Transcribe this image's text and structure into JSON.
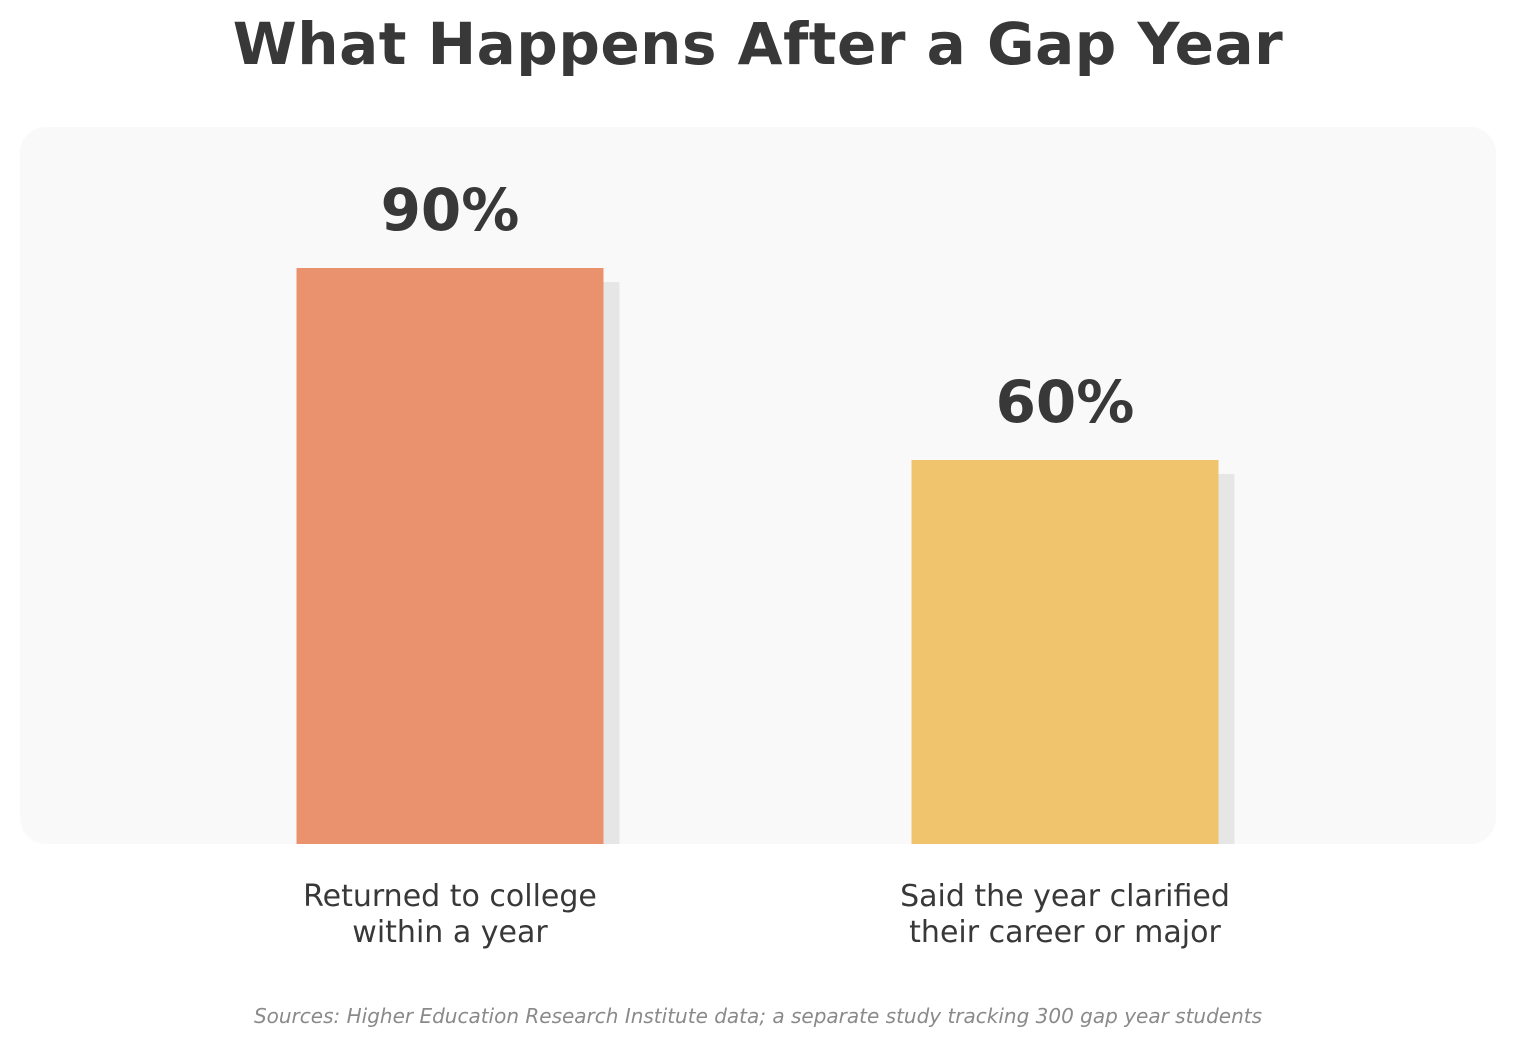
{
  "chart_data": {
    "type": "bar",
    "title": "What Happens After a Gap Year",
    "categories": [
      "Returned to college\nwithin a year",
      "Said the year clarified\ntheir career or major"
    ],
    "values": [
      90,
      60
    ],
    "value_labels": [
      "90%",
      "60%"
    ],
    "colors": [
      "#e9926d",
      "#f0c36d"
    ],
    "shadow_color": "#e6e6e6",
    "ylim": [
      0,
      100
    ],
    "grid": false,
    "xlabel": "",
    "ylabel": "",
    "source": "Sources: Higher Education Research Institute data; a separate study tracking 300 gap year students"
  }
}
